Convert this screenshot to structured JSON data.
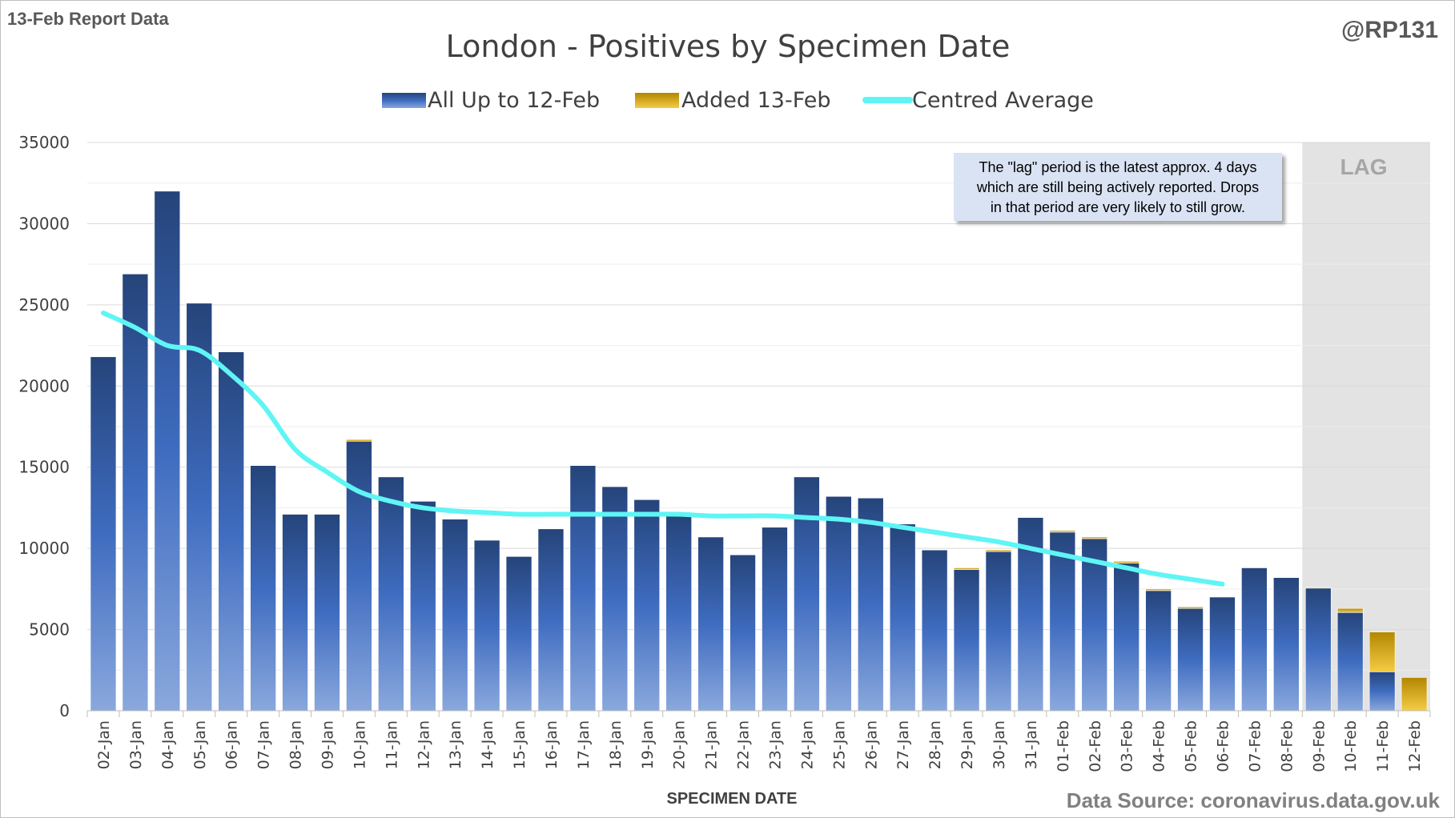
{
  "report_label": "13-Feb Report Data",
  "handle": "@RP131",
  "source": "Data Source: coronavirus.data.gov.uk",
  "lag_label": "LAG",
  "note_lines": [
    "The \"lag\" period is the latest approx. 4 days",
    "which are still being actively reported.  Drops",
    "in that period are very likely to still grow."
  ],
  "colors": {
    "base_top": "#25447a",
    "base_mid": "#3f6cc0",
    "base_bottom": "#8aa8dd",
    "added_top": "#b38600",
    "added_bottom": "#f5cc45",
    "average_line": "#5ff5f5",
    "lag_shade": "#e3e3e3",
    "note_bg": "#dae3f3",
    "grid": "#d9d9d9"
  },
  "chart_data": {
    "type": "bar",
    "stacked": true,
    "title": "London - Positives by Specimen Date",
    "xlabel": "SPECIMEN DATE",
    "ylabel": "",
    "ylim": [
      0,
      35000
    ],
    "yticks": [
      0,
      5000,
      10000,
      15000,
      20000,
      25000,
      30000,
      35000
    ],
    "grid": true,
    "legend_position": "top",
    "lag_categories": [
      "09-Feb",
      "10-Feb",
      "11-Feb",
      "12-Feb"
    ],
    "categories": [
      "02-Jan",
      "03-Jan",
      "04-Jan",
      "05-Jan",
      "06-Jan",
      "07-Jan",
      "08-Jan",
      "09-Jan",
      "10-Jan",
      "11-Jan",
      "12-Jan",
      "13-Jan",
      "14-Jan",
      "15-Jan",
      "16-Jan",
      "17-Jan",
      "18-Jan",
      "19-Jan",
      "20-Jan",
      "21-Jan",
      "22-Jan",
      "23-Jan",
      "24-Jan",
      "25-Jan",
      "26-Jan",
      "27-Jan",
      "28-Jan",
      "29-Jan",
      "30-Jan",
      "31-Jan",
      "01-Feb",
      "02-Feb",
      "03-Feb",
      "04-Feb",
      "05-Feb",
      "06-Feb",
      "07-Feb",
      "08-Feb",
      "09-Feb",
      "10-Feb",
      "11-Feb",
      "12-Feb"
    ],
    "series": [
      {
        "name": "All Up to 12-Feb",
        "kind": "bar",
        "values": [
          21800,
          26900,
          32000,
          25100,
          22100,
          15100,
          12100,
          12100,
          16600,
          14400,
          12900,
          11800,
          10500,
          9500,
          11200,
          15100,
          13800,
          13000,
          12000,
          10700,
          9600,
          11300,
          14400,
          13200,
          13100,
          11500,
          9900,
          8700,
          9800,
          11900,
          11000,
          10600,
          9100,
          7400,
          6300,
          7000,
          8800,
          8200,
          7550,
          6050,
          2400,
          0
        ]
      },
      {
        "name": "Added 13-Feb",
        "kind": "bar",
        "values": [
          0,
          0,
          0,
          0,
          0,
          0,
          0,
          0,
          100,
          0,
          0,
          0,
          0,
          0,
          0,
          0,
          0,
          0,
          0,
          0,
          0,
          0,
          0,
          0,
          0,
          0,
          0,
          100,
          100,
          0,
          100,
          100,
          100,
          100,
          100,
          0,
          0,
          0,
          50,
          250,
          2450,
          2050
        ]
      },
      {
        "name": "Centred Average",
        "kind": "line",
        "values": [
          24500,
          23600,
          22500,
          22200,
          20700,
          18800,
          16100,
          14700,
          13500,
          12900,
          12500,
          12300,
          12200,
          12100,
          12100,
          12100,
          12100,
          12100,
          12100,
          12000,
          12000,
          12000,
          11900,
          11800,
          11600,
          11300,
          11000,
          10700,
          10400,
          10000,
          9600,
          9200,
          8800,
          8400,
          8100,
          7800,
          null,
          null,
          null,
          null,
          null,
          null
        ]
      }
    ]
  }
}
